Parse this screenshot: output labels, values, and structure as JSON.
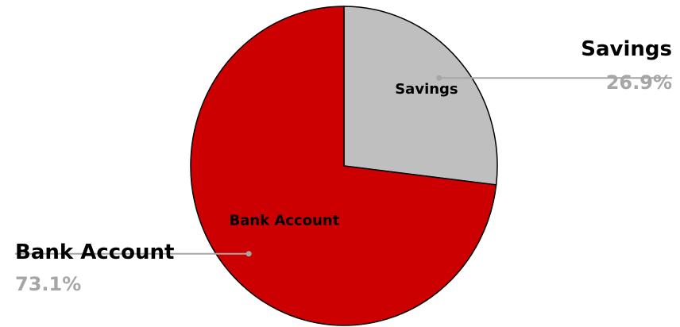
{
  "chart_data": {
    "type": "pie",
    "categories": [
      "Savings",
      "Bank Account"
    ],
    "values": [
      26.9,
      73.1
    ],
    "percent_labels": [
      "26.9%",
      "73.1%"
    ],
    "colors": [
      "#bfbfbf",
      "#cc0000"
    ],
    "start_angle_deg": 0,
    "direction": "clockwise",
    "legend": "none"
  },
  "colors": {
    "slice_border": "#000000",
    "leader_line": "#a6a6a6",
    "percent_text": "#a6a6a6",
    "slice_label_text": "#000000"
  }
}
